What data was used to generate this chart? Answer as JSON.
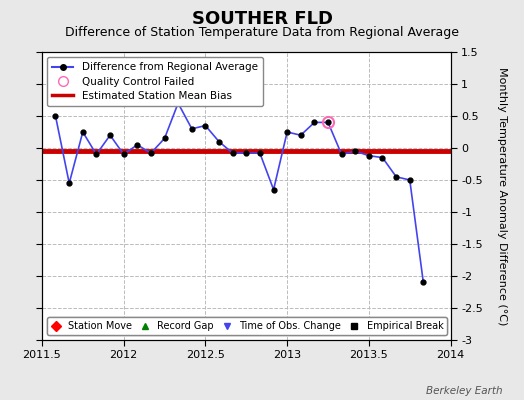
{
  "title": "SOUTHER FLD",
  "subtitle": "Difference of Station Temperature Data from Regional Average",
  "ylabel": "Monthly Temperature Anomaly Difference (°C)",
  "watermark": "Berkeley Earth",
  "xlim": [
    2011.5,
    2014.0
  ],
  "ylim": [
    -3.0,
    1.5
  ],
  "yticks": [
    -3.0,
    -2.5,
    -2.0,
    -1.5,
    -1.0,
    -0.5,
    0.0,
    0.5,
    1.0,
    1.5
  ],
  "xticks": [
    2011.5,
    2012.0,
    2012.5,
    2013.0,
    2013.5,
    2014.0
  ],
  "xticklabels": [
    "2011.5",
    "2012",
    "2012.5",
    "2013",
    "2013.5",
    "2014"
  ],
  "bias_line_y": -0.05,
  "line_x": [
    2011.583,
    2011.667,
    2011.75,
    2011.833,
    2011.917,
    2012.0,
    2012.083,
    2012.167,
    2012.25,
    2012.333,
    2012.417,
    2012.5,
    2012.583,
    2012.667,
    2012.75,
    2012.833,
    2012.917,
    2013.0,
    2013.083,
    2013.167,
    2013.25,
    2013.333,
    2013.417,
    2013.5,
    2013.583,
    2013.667,
    2013.75,
    2013.833
  ],
  "line_y": [
    0.5,
    -0.55,
    0.25,
    -0.1,
    0.2,
    -0.1,
    0.05,
    -0.08,
    0.15,
    0.7,
    0.3,
    0.35,
    0.1,
    -0.08,
    -0.08,
    -0.08,
    -0.65,
    0.25,
    0.2,
    0.4,
    0.4,
    -0.1,
    -0.05,
    -0.12,
    -0.15,
    -0.45,
    -0.5,
    -2.1
  ],
  "qc_fail_x": [
    2013.25
  ],
  "qc_fail_y": [
    0.4
  ],
  "bg_color": "#e8e8e8",
  "plot_bg_color": "#ffffff",
  "line_color": "#4444ee",
  "line_width": 1.2,
  "marker_color": "#000000",
  "marker_size": 3.5,
  "bias_color": "#cc0000",
  "bias_linewidth": 3.5,
  "grid_color": "#bbbbbb",
  "grid_linestyle": "--",
  "title_fontsize": 13,
  "subtitle_fontsize": 9,
  "tick_fontsize": 8,
  "ylabel_fontsize": 8
}
